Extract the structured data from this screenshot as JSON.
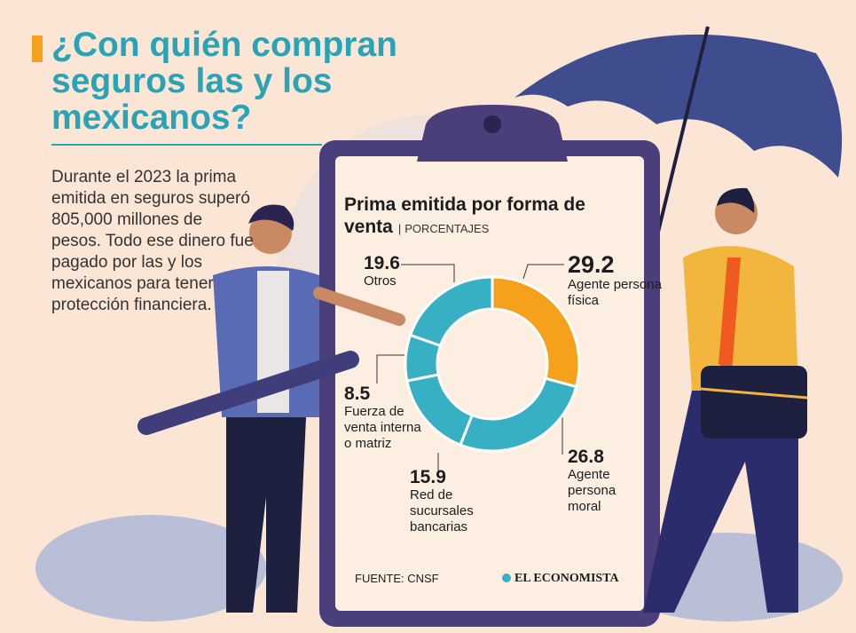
{
  "header": {
    "title": "¿Con quién compran seguros las y los mexicanos?",
    "intro": "Durante el 2023 la prima emitida en seguros superó 805,000 millones de pesos. Todo ese dinero fue pagado por las y los mexicanos para tener protección financiera."
  },
  "chart_data": {
    "type": "donut",
    "title": "Prima emitida por forma de venta",
    "subtitle": "PORCENTAJES",
    "categories": [
      "Agente persona física",
      "Agente persona moral",
      "Red de sucursales bancarias",
      "Fuerza de venta interna o matriz",
      "Otros"
    ],
    "values": [
      29.2,
      26.8,
      15.9,
      8.5,
      19.6
    ],
    "colors": [
      "#f5a11c",
      "#37b0c4",
      "#37b0c4",
      "#37b0c4",
      "#37b0c4"
    ]
  },
  "footer": {
    "source": "FUENTE: CNSF",
    "brand": "EL ECONOMISTA"
  }
}
